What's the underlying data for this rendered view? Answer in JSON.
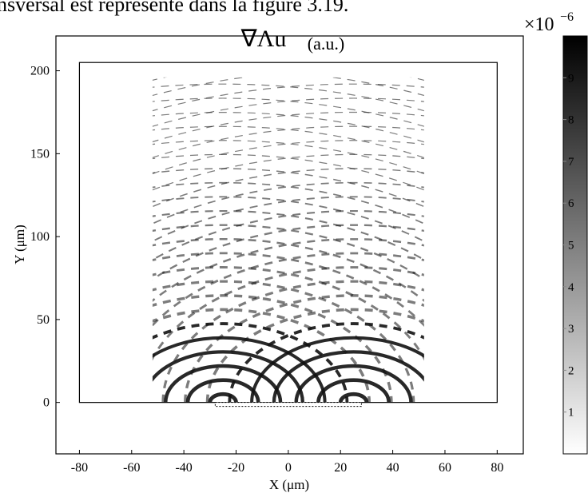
{
  "header": {
    "text": "nsversal est représenté dans la figure 3.19."
  },
  "chart_data": {
    "type": "field",
    "title": "∇Λu",
    "title_unit": "(a.u.)",
    "x_label": "X (μm)",
    "y_label": "Y (μm)",
    "xlim": [
      -89,
      90
    ],
    "xticks": [
      -80,
      -60,
      -40,
      -20,
      0,
      20,
      40,
      60,
      80
    ],
    "ylim": [
      -31,
      221
    ],
    "yticks": [
      0,
      50,
      100,
      150,
      200
    ],
    "colorbar": {
      "multiplier": "×10",
      "exponent": "−6",
      "lim": [
        0,
        10
      ],
      "ticks": [
        1,
        2,
        3,
        4,
        5,
        6,
        7,
        8,
        9
      ],
      "colors": [
        "#ffffff",
        "#000000"
      ]
    }
  }
}
